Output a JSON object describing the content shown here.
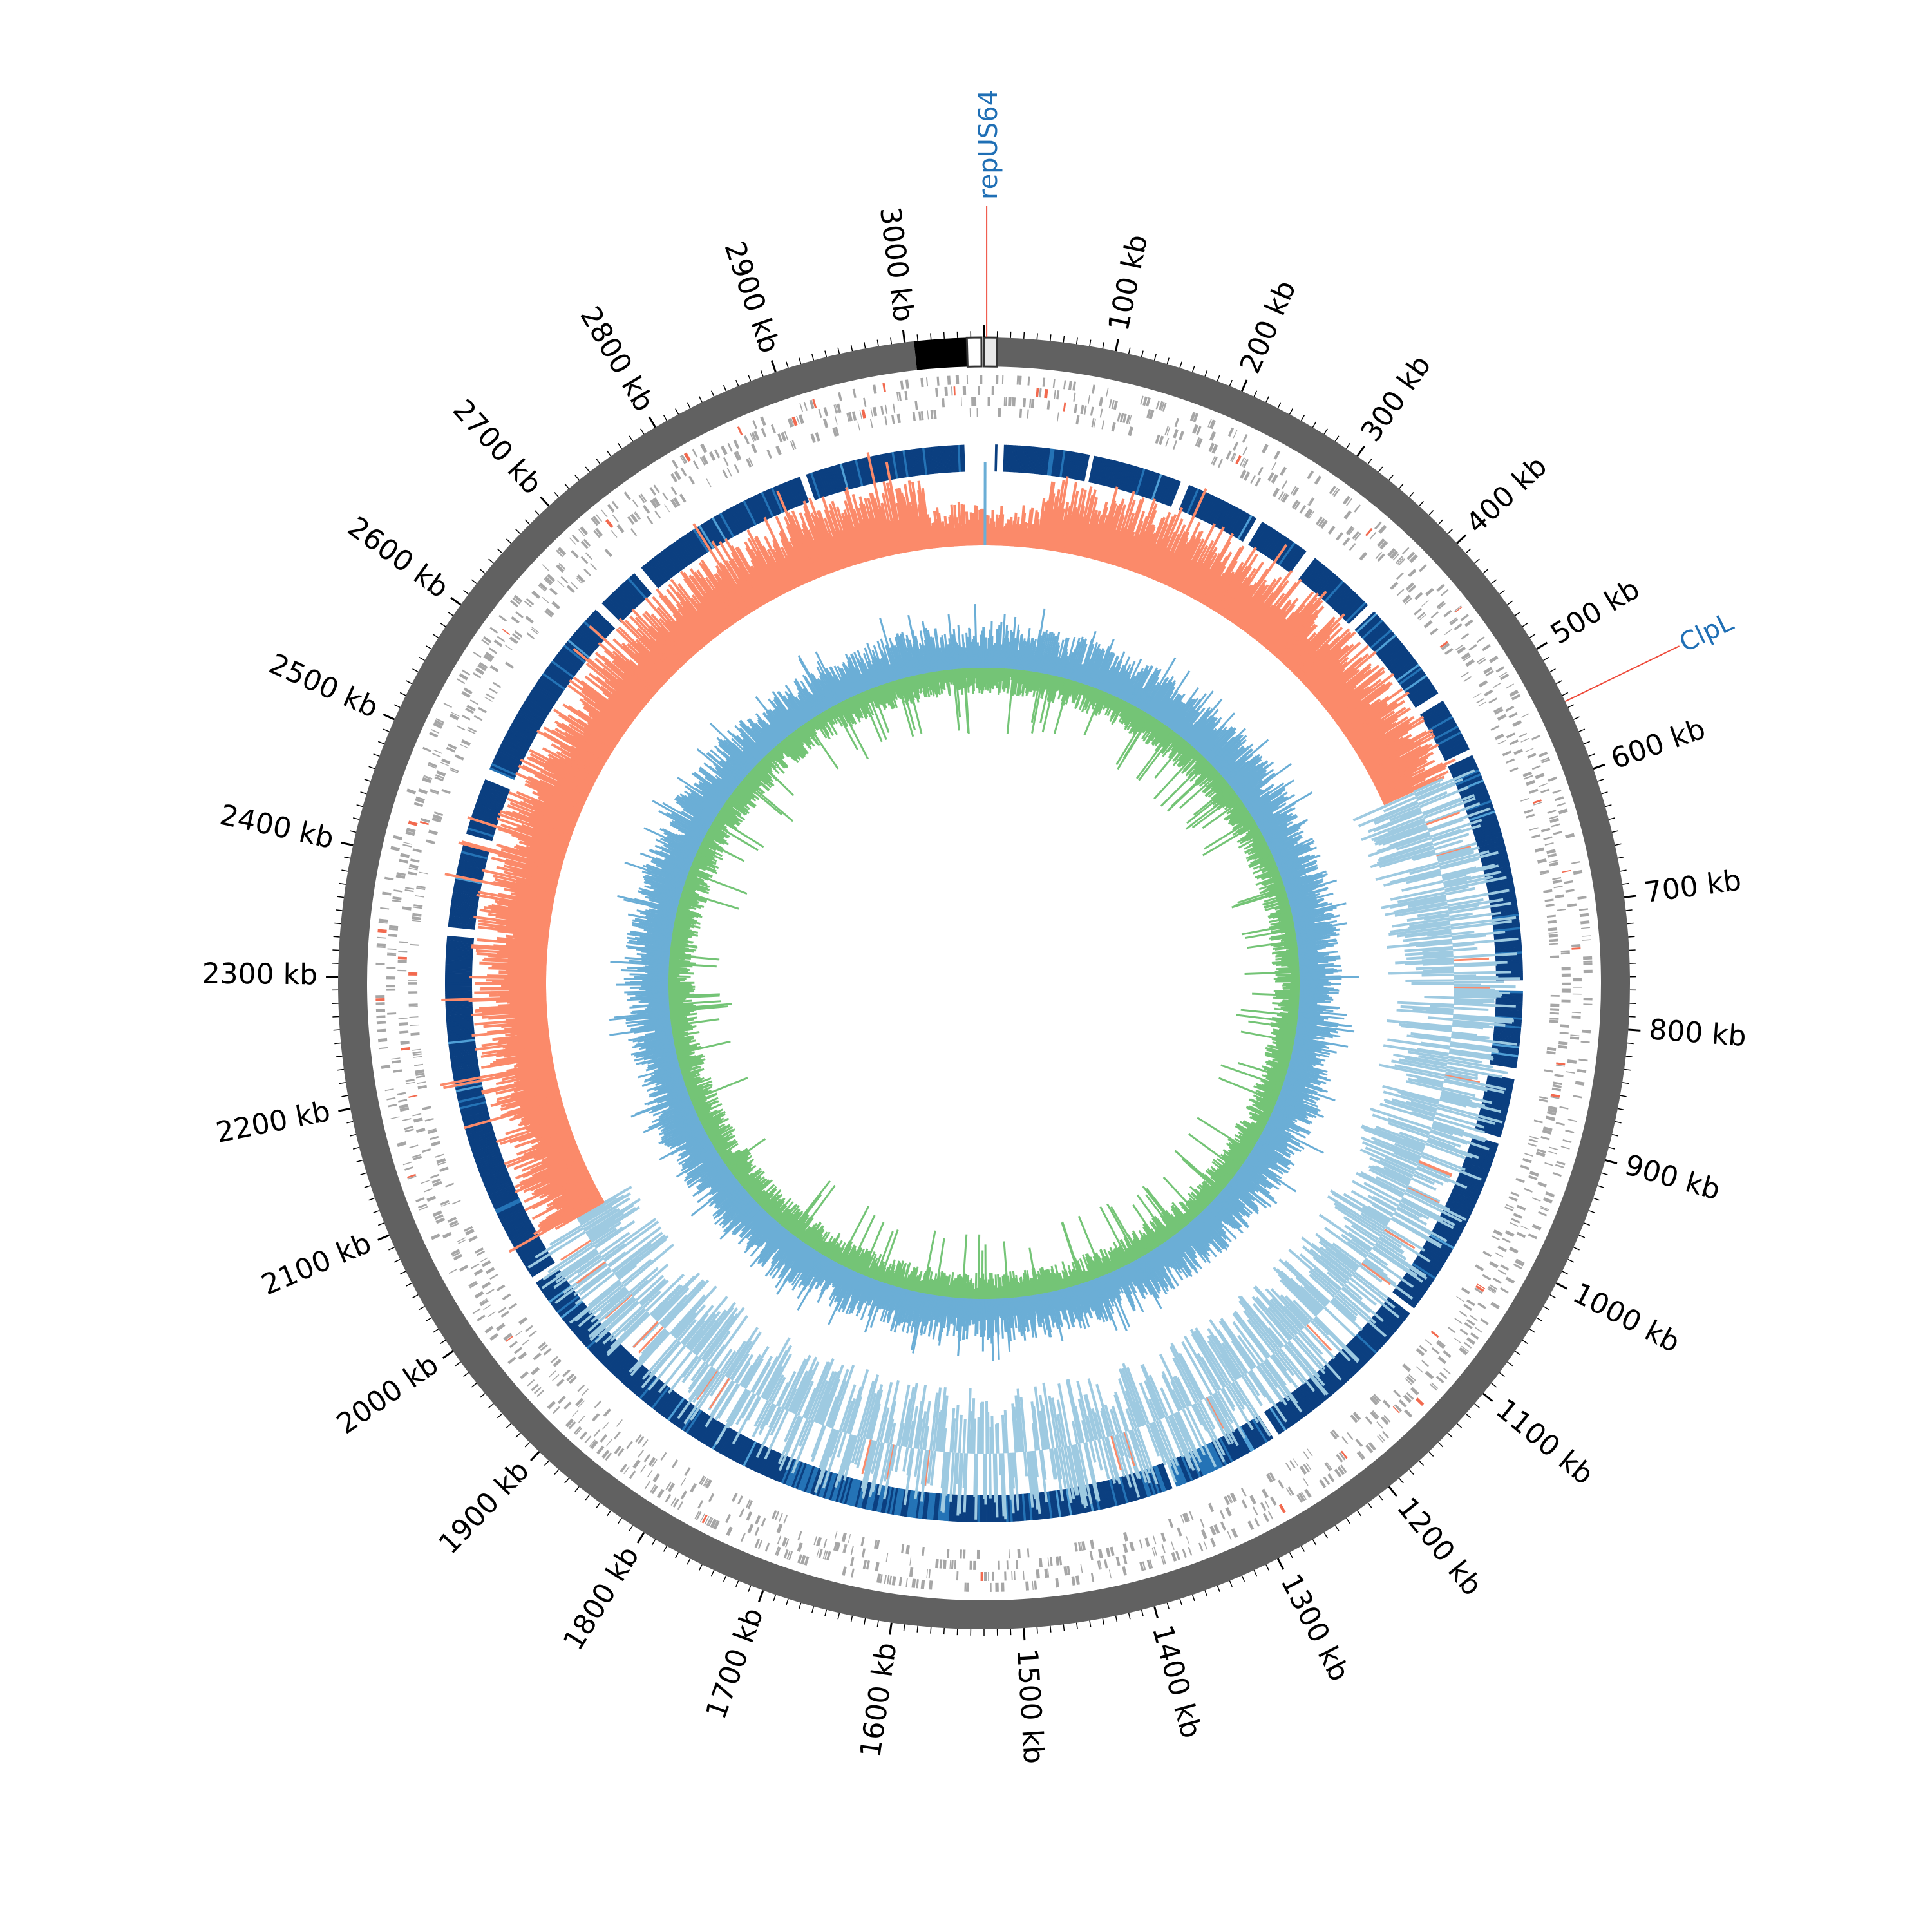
{
  "genome": {
    "length_kb": 3060,
    "tick_labels": [
      "100 kb",
      "200 kb",
      "300 kb",
      "400 kb",
      "500 kb",
      "600 kb",
      "700 kb",
      "800 kb",
      "900 kb",
      "1000 kb",
      "1100 kb",
      "1200 kb",
      "1300 kb",
      "1400 kb",
      "1500 kb",
      "1600 kb",
      "1700 kb",
      "1800 kb",
      "1900 kb",
      "2000 kb",
      "2100 kb",
      "2200 kb",
      "2300 kb",
      "2400 kb",
      "2500 kb",
      "2600 kb",
      "2700 kb",
      "2800 kb",
      "2900 kb",
      "3000 kb"
    ]
  },
  "annotations": [
    {
      "name": "repUS64",
      "position_kb": 2
    },
    {
      "name": "ClpL",
      "position_kb": 545
    }
  ],
  "colors": {
    "backbone": "#616161",
    "contig_black": "#000000",
    "genes": "#a6a6a6",
    "genes_highlight": "#f26a4f",
    "homology_dark": "#0b3f80",
    "homology_mid": "#2473b6",
    "homology_light": "#4f9fd6",
    "skew_positive": "#fb8a6a",
    "skew_negative": "#9ecae1",
    "gc_blue": "#6baed6",
    "gc_green": "#74c476",
    "label_blue": "#1f6fb5",
    "connector": "#ee4a3a"
  }
}
